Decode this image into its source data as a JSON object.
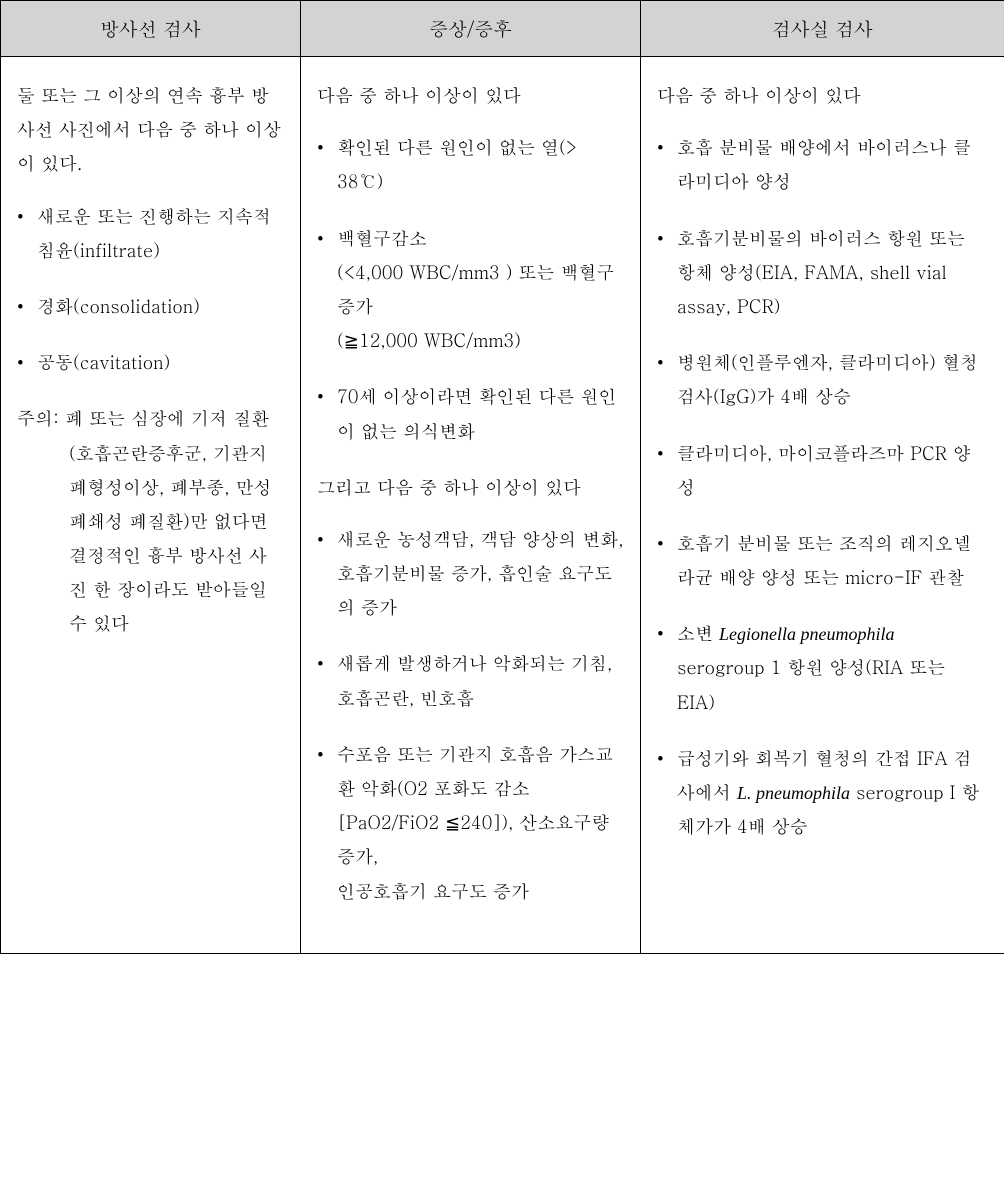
{
  "table": {
    "header_bg": "#d3d3d3",
    "border_color": "#000000",
    "columns": [
      {
        "label": "방사선 검사"
      },
      {
        "label": "증상/증후"
      },
      {
        "label": "검사실 검사"
      }
    ],
    "col1": {
      "intro": "둘 또는 그 이상의 연속 흉부 방사선 사진에서 다음 중 하나 이상이 있다.",
      "items": [
        "새로운 또는 진행하는 지속적 침윤(infiltrate)",
        "경화(consolidation)",
        "공동(cavitation)"
      ],
      "note_label": "주의:",
      "note_body": "폐 또는 심장에 기저 질환(호흡곤란증후군, 기관지폐형성이상, 폐부종, 만성 폐쇄성 폐질환)만 없다면 결정적인 흉부 방사선 사진 한 장이라도 받아들일 수 있다"
    },
    "col2": {
      "intro": "다음 중 하나 이상이 있다",
      "group1": [
        "확인된 다른 원인이 없는 열(> 38℃)",
        "백혈구감소\n(<4,000 WBC/mm3 ) 또는 백혈구증가\n(≧12,000 WBC/mm3)",
        " 70세 이상이라면 확인된 다른 원인이 없는 의식변화"
      ],
      "intro2": "그리고 다음 중 하나 이상이 있다",
      "group2": [
        "새로운 농성객담, 객담 양상의 변화, 호흡기분비물 증가, 흡인술 요구도의 증가",
        "새롭게 발생하거나 악화되는 기침, 호흡곤란, 빈호흡",
        "수포음 또는 기관지 호흡음 가스교환 악화(O2 포화도 감소 [PaO2/FiO2 ≦240]), 산소요구량 증가,\n인공호흡기 요구도 증가"
      ]
    },
    "col3": {
      "intro": "다음 중 하나 이상이 있다",
      "items": [
        {
          "text": "호흡 분비물 배양에서 바이러스나 클라미디아 양성"
        },
        {
          "text": "호흡기분비물의 바이러스 항원 또는 항체 양성(EIA, FAMA, shell vial assay, PCR)"
        },
        {
          "text": "병원체(인플루엔자, 클라미디아) 혈청 검사(IgG)가 4배 상승"
        },
        {
          "text": "클라미디아, 마이코플라즈마 PCR 양성"
        },
        {
          "text": "호흡기 분비물 또는 조직의 레지오넬라균 배양 양성 또는 micro-IF 관찰"
        },
        {
          "pre": "소변 ",
          "italic": "Legionella pneumophila",
          "post": " serogroup 1 항원 양성(RIA 또는 EIA)"
        },
        {
          "pre": "급성기와 회복기 혈청의 간접 IFA 검사에서 ",
          "italic": "L. pneumophila",
          "post": " serogroup I 항체가가 4배 상승"
        }
      ]
    }
  }
}
